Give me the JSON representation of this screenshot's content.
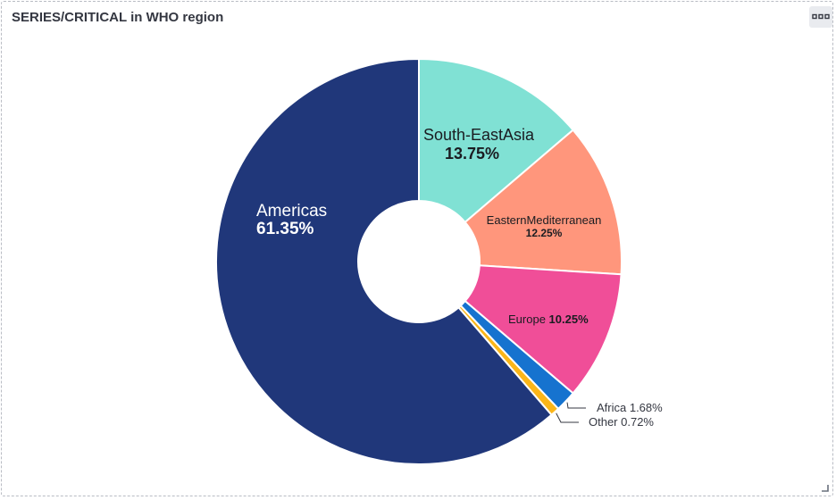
{
  "panel": {
    "title": "SERIES/CRITICAL in WHO region",
    "options_icon": "dots-horizontal-icon",
    "resize_icon": "resize-corner-icon"
  },
  "chart_data": {
    "type": "pie",
    "donut": true,
    "title": "SERIES/CRITICAL in WHO region",
    "slices": [
      {
        "name": "South-EastAsia",
        "value": 13.75,
        "label": "13.75%",
        "color": "#80e1d4"
      },
      {
        "name": "EasternMediterranean",
        "value": 12.25,
        "label": "12.25%",
        "color": "#ff967c"
      },
      {
        "name": "Europe",
        "value": 10.25,
        "label": "10.25%",
        "color": "#f04e98"
      },
      {
        "name": "Africa",
        "value": 1.68,
        "label": "1.68%",
        "color": "#1673cf"
      },
      {
        "name": "Other",
        "value": 0.72,
        "label": "0.72%",
        "color": "#fbb619"
      },
      {
        "name": "Americas",
        "value": 61.35,
        "label": "61.35%",
        "color": "#20377a"
      }
    ]
  }
}
